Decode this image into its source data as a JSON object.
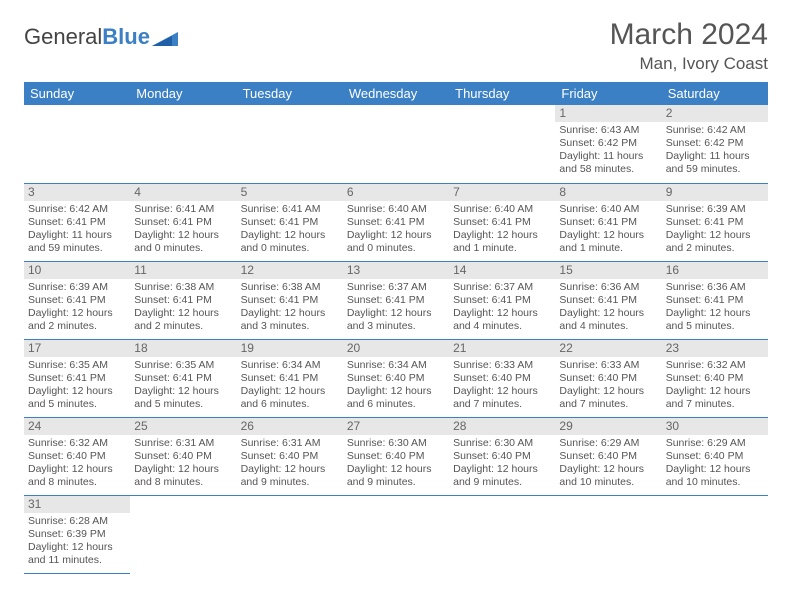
{
  "brand": {
    "part1": "General",
    "part2": "Blue"
  },
  "title": "March 2024",
  "location": "Man, Ivory Coast",
  "colors": {
    "header_bg": "#3b7fc4",
    "header_text": "#ffffff",
    "daynum_bg": "#e7e7e7",
    "cell_border": "#3b7fc4",
    "body_text": "#555555",
    "page_bg": "#ffffff"
  },
  "typography": {
    "title_fontsize": 30,
    "location_fontsize": 17,
    "dayheader_fontsize": 13,
    "cell_fontsize": 10.5
  },
  "day_headers": [
    "Sunday",
    "Monday",
    "Tuesday",
    "Wednesday",
    "Thursday",
    "Friday",
    "Saturday"
  ],
  "weeks": [
    [
      null,
      null,
      null,
      null,
      null,
      {
        "n": "1",
        "sr": "Sunrise: 6:43 AM",
        "ss": "Sunset: 6:42 PM",
        "d1": "Daylight: 11 hours",
        "d2": "and 58 minutes."
      },
      {
        "n": "2",
        "sr": "Sunrise: 6:42 AM",
        "ss": "Sunset: 6:42 PM",
        "d1": "Daylight: 11 hours",
        "d2": "and 59 minutes."
      }
    ],
    [
      {
        "n": "3",
        "sr": "Sunrise: 6:42 AM",
        "ss": "Sunset: 6:41 PM",
        "d1": "Daylight: 11 hours",
        "d2": "and 59 minutes."
      },
      {
        "n": "4",
        "sr": "Sunrise: 6:41 AM",
        "ss": "Sunset: 6:41 PM",
        "d1": "Daylight: 12 hours",
        "d2": "and 0 minutes."
      },
      {
        "n": "5",
        "sr": "Sunrise: 6:41 AM",
        "ss": "Sunset: 6:41 PM",
        "d1": "Daylight: 12 hours",
        "d2": "and 0 minutes."
      },
      {
        "n": "6",
        "sr": "Sunrise: 6:40 AM",
        "ss": "Sunset: 6:41 PM",
        "d1": "Daylight: 12 hours",
        "d2": "and 0 minutes."
      },
      {
        "n": "7",
        "sr": "Sunrise: 6:40 AM",
        "ss": "Sunset: 6:41 PM",
        "d1": "Daylight: 12 hours",
        "d2": "and 1 minute."
      },
      {
        "n": "8",
        "sr": "Sunrise: 6:40 AM",
        "ss": "Sunset: 6:41 PM",
        "d1": "Daylight: 12 hours",
        "d2": "and 1 minute."
      },
      {
        "n": "9",
        "sr": "Sunrise: 6:39 AM",
        "ss": "Sunset: 6:41 PM",
        "d1": "Daylight: 12 hours",
        "d2": "and 2 minutes."
      }
    ],
    [
      {
        "n": "10",
        "sr": "Sunrise: 6:39 AM",
        "ss": "Sunset: 6:41 PM",
        "d1": "Daylight: 12 hours",
        "d2": "and 2 minutes."
      },
      {
        "n": "11",
        "sr": "Sunrise: 6:38 AM",
        "ss": "Sunset: 6:41 PM",
        "d1": "Daylight: 12 hours",
        "d2": "and 2 minutes."
      },
      {
        "n": "12",
        "sr": "Sunrise: 6:38 AM",
        "ss": "Sunset: 6:41 PM",
        "d1": "Daylight: 12 hours",
        "d2": "and 3 minutes."
      },
      {
        "n": "13",
        "sr": "Sunrise: 6:37 AM",
        "ss": "Sunset: 6:41 PM",
        "d1": "Daylight: 12 hours",
        "d2": "and 3 minutes."
      },
      {
        "n": "14",
        "sr": "Sunrise: 6:37 AM",
        "ss": "Sunset: 6:41 PM",
        "d1": "Daylight: 12 hours",
        "d2": "and 4 minutes."
      },
      {
        "n": "15",
        "sr": "Sunrise: 6:36 AM",
        "ss": "Sunset: 6:41 PM",
        "d1": "Daylight: 12 hours",
        "d2": "and 4 minutes."
      },
      {
        "n": "16",
        "sr": "Sunrise: 6:36 AM",
        "ss": "Sunset: 6:41 PM",
        "d1": "Daylight: 12 hours",
        "d2": "and 5 minutes."
      }
    ],
    [
      {
        "n": "17",
        "sr": "Sunrise: 6:35 AM",
        "ss": "Sunset: 6:41 PM",
        "d1": "Daylight: 12 hours",
        "d2": "and 5 minutes."
      },
      {
        "n": "18",
        "sr": "Sunrise: 6:35 AM",
        "ss": "Sunset: 6:41 PM",
        "d1": "Daylight: 12 hours",
        "d2": "and 5 minutes."
      },
      {
        "n": "19",
        "sr": "Sunrise: 6:34 AM",
        "ss": "Sunset: 6:41 PM",
        "d1": "Daylight: 12 hours",
        "d2": "and 6 minutes."
      },
      {
        "n": "20",
        "sr": "Sunrise: 6:34 AM",
        "ss": "Sunset: 6:40 PM",
        "d1": "Daylight: 12 hours",
        "d2": "and 6 minutes."
      },
      {
        "n": "21",
        "sr": "Sunrise: 6:33 AM",
        "ss": "Sunset: 6:40 PM",
        "d1": "Daylight: 12 hours",
        "d2": "and 7 minutes."
      },
      {
        "n": "22",
        "sr": "Sunrise: 6:33 AM",
        "ss": "Sunset: 6:40 PM",
        "d1": "Daylight: 12 hours",
        "d2": "and 7 minutes."
      },
      {
        "n": "23",
        "sr": "Sunrise: 6:32 AM",
        "ss": "Sunset: 6:40 PM",
        "d1": "Daylight: 12 hours",
        "d2": "and 7 minutes."
      }
    ],
    [
      {
        "n": "24",
        "sr": "Sunrise: 6:32 AM",
        "ss": "Sunset: 6:40 PM",
        "d1": "Daylight: 12 hours",
        "d2": "and 8 minutes."
      },
      {
        "n": "25",
        "sr": "Sunrise: 6:31 AM",
        "ss": "Sunset: 6:40 PM",
        "d1": "Daylight: 12 hours",
        "d2": "and 8 minutes."
      },
      {
        "n": "26",
        "sr": "Sunrise: 6:31 AM",
        "ss": "Sunset: 6:40 PM",
        "d1": "Daylight: 12 hours",
        "d2": "and 9 minutes."
      },
      {
        "n": "27",
        "sr": "Sunrise: 6:30 AM",
        "ss": "Sunset: 6:40 PM",
        "d1": "Daylight: 12 hours",
        "d2": "and 9 minutes."
      },
      {
        "n": "28",
        "sr": "Sunrise: 6:30 AM",
        "ss": "Sunset: 6:40 PM",
        "d1": "Daylight: 12 hours",
        "d2": "and 9 minutes."
      },
      {
        "n": "29",
        "sr": "Sunrise: 6:29 AM",
        "ss": "Sunset: 6:40 PM",
        "d1": "Daylight: 12 hours",
        "d2": "and 10 minutes."
      },
      {
        "n": "30",
        "sr": "Sunrise: 6:29 AM",
        "ss": "Sunset: 6:40 PM",
        "d1": "Daylight: 12 hours",
        "d2": "and 10 minutes."
      }
    ],
    [
      {
        "n": "31",
        "sr": "Sunrise: 6:28 AM",
        "ss": "Sunset: 6:39 PM",
        "d1": "Daylight: 12 hours",
        "d2": "and 11 minutes."
      },
      null,
      null,
      null,
      null,
      null,
      null
    ]
  ]
}
